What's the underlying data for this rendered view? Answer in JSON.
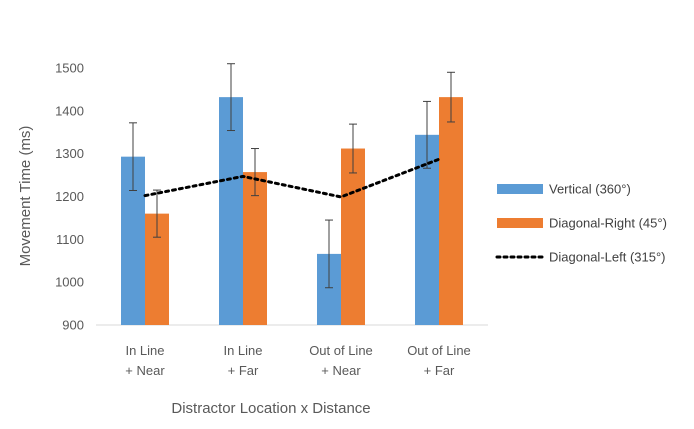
{
  "chart_data": {
    "type": "bar",
    "title": "",
    "xlabel": "Distractor Location x Distance",
    "ylabel": "Movement Time (ms)",
    "ylim": [
      900,
      1500
    ],
    "yticks": [
      900,
      1000,
      1100,
      1200,
      1300,
      1400,
      1500
    ],
    "grid": false,
    "legend_position": "right",
    "categories": [
      [
        "In Line",
        "+ Near"
      ],
      [
        "In Line",
        "+ Far"
      ],
      [
        "Out of Line",
        "+ Near"
      ],
      [
        "Out of Line",
        "+ Far"
      ]
    ],
    "series": [
      {
        "name": "Vertical (360°)",
        "kind": "bar",
        "color": "#5B9BD5",
        "values": [
          1293,
          1432,
          1066,
          1344
        ],
        "error": [
          79,
          78,
          79,
          78
        ]
      },
      {
        "name": "Diagonal-Right (45°)",
        "kind": "bar",
        "color": "#ED7D31",
        "values": [
          1160,
          1257,
          1312,
          1432
        ],
        "error": [
          55,
          55,
          57,
          58
        ]
      },
      {
        "name": "Diagonal-Left (315°)",
        "kind": "line",
        "style": "dotted",
        "color": "#000000",
        "values": [
          1202,
          1247,
          1199,
          1287
        ]
      }
    ]
  }
}
